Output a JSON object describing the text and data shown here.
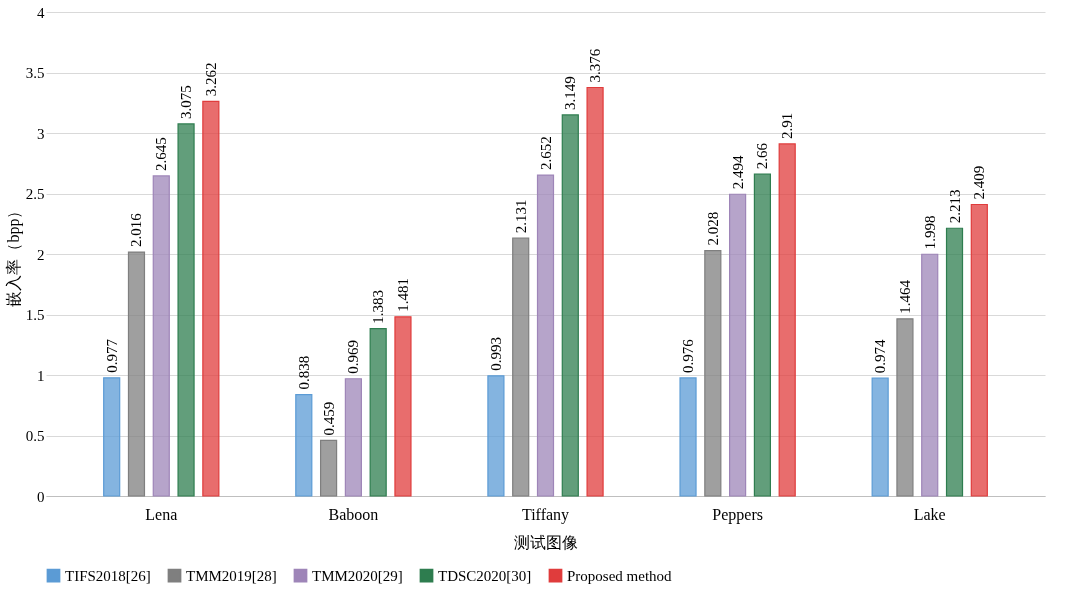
{
  "chart_data": {
    "type": "bar",
    "xlabel": "测试图像",
    "ylabel": "嵌入率（bpp）",
    "categories": [
      "Lena",
      "Baboon",
      "Tiffany",
      "Peppers",
      "Lake"
    ],
    "series": [
      {
        "name": "TIFS2018[26]",
        "color": "#5b9bd5",
        "values": [
          0.977,
          0.838,
          0.993,
          0.976,
          0.974
        ]
      },
      {
        "name": "TMM2019[28]",
        "color": "#7f7f7f",
        "values": [
          2.016,
          0.459,
          2.131,
          2.028,
          1.464
        ]
      },
      {
        "name": "TMM2020[29]",
        "color": "#9e85b8",
        "values": [
          2.645,
          0.969,
          2.652,
          2.494,
          1.998
        ]
      },
      {
        "name": "TDSC2020[30]",
        "color": "#2e7d4f",
        "values": [
          3.075,
          1.383,
          3.149,
          2.66,
          2.213
        ]
      },
      {
        "name": "Proposed method",
        "color": "#e03c3c",
        "values": [
          3.262,
          1.481,
          3.376,
          2.91,
          2.409
        ]
      }
    ],
    "ylim": [
      0,
      4
    ],
    "yticks": [
      0,
      0.5,
      1,
      1.5,
      2,
      2.5,
      3,
      3.5,
      4
    ],
    "grid": "y",
    "legend": "bottom",
    "data_labels": true
  }
}
